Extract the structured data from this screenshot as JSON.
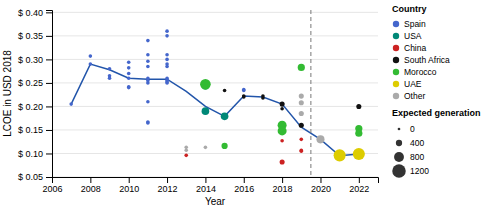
{
  "chart_data": {
    "type": "scatter",
    "xlabel": "Year",
    "ylabel": "LCOE in USD 2018",
    "xlim": [
      2006,
      2023
    ],
    "ylim": [
      0.05,
      0.405
    ],
    "xticks": [
      2006,
      2008,
      2010,
      2012,
      2014,
      2016,
      2018,
      2020,
      2022
    ],
    "yticks": [
      {
        "value": 0.05,
        "label": "$ 0.05"
      },
      {
        "value": 0.1,
        "label": "$ 0.10"
      },
      {
        "value": 0.15,
        "label": "$ 0.15"
      },
      {
        "value": 0.2,
        "label": "$ 0.20"
      },
      {
        "value": 0.25,
        "label": "$ 0.25"
      },
      {
        "value": 0.3,
        "label": "$ 0.30"
      },
      {
        "value": 0.35,
        "label": "$ 0.35"
      },
      {
        "value": 0.4,
        "label": "$ 0.40"
      }
    ],
    "grid": true,
    "vline": 2019.5,
    "trend_line": {
      "x": [
        2007,
        2008,
        2009,
        2010,
        2011,
        2012,
        2013,
        2014,
        2015,
        2016,
        2017,
        2018,
        2019,
        2020,
        2021,
        2022
      ],
      "values": [
        0.205,
        0.29,
        0.278,
        0.26,
        0.258,
        0.258,
        0.232,
        0.2,
        0.179,
        0.222,
        0.22,
        0.205,
        0.156,
        0.13,
        0.095,
        0.099
      ],
      "color": "#2255aa"
    },
    "legend_title": "Country",
    "series": [
      {
        "name": "Spain",
        "color": "#4466cc",
        "x": [
          2007,
          2008,
          2008,
          2009,
          2009,
          2009,
          2010,
          2010,
          2010,
          2010,
          2010,
          2010,
          2011,
          2011,
          2011,
          2011,
          2011,
          2011,
          2011,
          2011,
          2011,
          2011,
          2012,
          2012,
          2012,
          2012,
          2012,
          2012,
          2012,
          2012,
          2012,
          2012,
          2016,
          2016
        ],
        "values": [
          0.205,
          0.29,
          0.307,
          0.28,
          0.265,
          0.26,
          0.294,
          0.282,
          0.27,
          0.26,
          0.242,
          0.24,
          0.34,
          0.31,
          0.296,
          0.285,
          0.26,
          0.255,
          0.25,
          0.21,
          0.167,
          0.165,
          0.36,
          0.35,
          0.31,
          0.3,
          0.29,
          0.285,
          0.26,
          0.255,
          0.252,
          0.25,
          0.236,
          0.234
        ],
        "sizes": [
          4,
          4,
          4,
          4,
          4,
          4,
          4,
          4,
          4,
          4,
          4,
          4,
          4,
          4,
          4,
          4,
          4,
          4,
          4,
          4,
          4,
          4,
          4,
          4,
          4,
          4,
          4,
          4,
          4,
          4,
          4,
          4,
          4,
          4
        ]
      },
      {
        "name": "USA",
        "color": "#008877",
        "x": [
          2014,
          2014,
          2014,
          2015
        ],
        "values": [
          0.248,
          0.244,
          0.19,
          0.179
        ],
        "sizes": [
          18,
          18,
          18,
          18
        ]
      },
      {
        "name": "China",
        "color": "#cc2222",
        "x": [
          2013,
          2018,
          2018,
          2019,
          2019,
          2019
        ],
        "values": [
          0.096,
          0.127,
          0.082,
          0.13,
          0.107,
          0.105
        ],
        "sizes": [
          4,
          4,
          8,
          4,
          4,
          4
        ]
      },
      {
        "name": "South Africa",
        "color": "#111111",
        "x": [
          2015,
          2016,
          2016,
          2017,
          2017,
          2018,
          2018,
          2019,
          2022
        ],
        "values": [
          0.234,
          0.222,
          0.22,
          0.222,
          0.218,
          0.205,
          0.195,
          0.16,
          0.2
        ],
        "sizes": [
          4,
          4,
          4,
          4,
          4,
          8,
          4,
          8,
          8
        ]
      },
      {
        "name": "Morocco",
        "color": "#33bb33",
        "x": [
          2014,
          2015,
          2018,
          2018,
          2019,
          2022,
          2022
        ],
        "values": [
          0.247,
          0.116,
          0.16,
          0.148,
          0.283,
          0.153,
          0.143
        ],
        "sizes": [
          35,
          12,
          25,
          25,
          16,
          16,
          16
        ]
      },
      {
        "name": "UAE",
        "color": "#ddcc00",
        "x": [
          2021,
          2022
        ],
        "values": [
          0.096,
          0.099
        ],
        "sizes": [
          45,
          45
        ]
      },
      {
        "name": "Other",
        "color": "#aaaaaa",
        "x": [
          2013,
          2013,
          2014,
          2019,
          2019,
          2019,
          2020
        ],
        "values": [
          0.107,
          0.113,
          0.113,
          0.222,
          0.208,
          0.185,
          0.13
        ],
        "sizes": [
          4,
          4,
          4,
          8,
          8,
          8,
          20
        ]
      }
    ],
    "size_legend": {
      "title": "Expected generation",
      "values": [
        0,
        400,
        800,
        1200
      ],
      "sizes": [
        1.5,
        3.5,
        5.5,
        7.5
      ]
    }
  }
}
